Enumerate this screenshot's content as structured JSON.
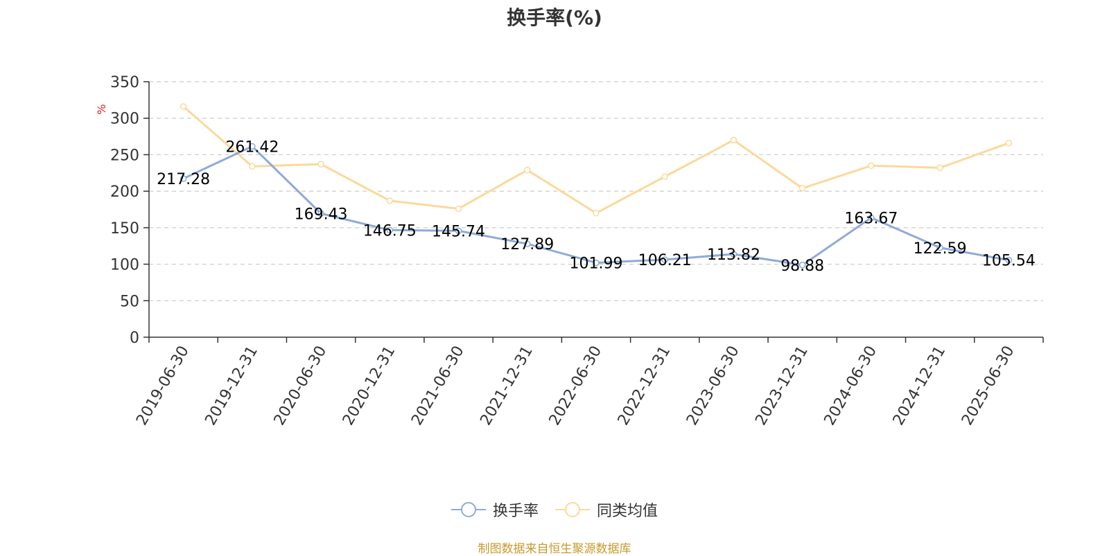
{
  "chart_data": {
    "type": "line",
    "title": "换手率(%)",
    "ylabel": "%",
    "xlabel": "",
    "ylim": [
      0,
      350
    ],
    "yticks": [
      0,
      50,
      100,
      150,
      200,
      250,
      300,
      350
    ],
    "grid": true,
    "legend_position": "bottom",
    "categories": [
      "2019-06-30",
      "2019-12-31",
      "2020-06-30",
      "2020-12-31",
      "2021-06-30",
      "2021-12-31",
      "2022-06-30",
      "2022-12-31",
      "2023-06-30",
      "2023-12-31",
      "2024-06-30",
      "2024-12-31",
      "2025-06-30"
    ],
    "series": [
      {
        "name": "换手率",
        "color": "#8eaad8",
        "show_labels": true,
        "values": [
          217.28,
          261.42,
          169.43,
          146.75,
          145.74,
          127.89,
          101.99,
          106.21,
          113.82,
          98.88,
          163.67,
          122.59,
          105.54
        ]
      },
      {
        "name": "同类均值",
        "color": "#fbd99a",
        "show_labels": false,
        "values": [
          316,
          234,
          237,
          187,
          176,
          229,
          170,
          220,
          270,
          204,
          235,
          232,
          266
        ]
      }
    ]
  },
  "source_text": "制图数据来自恒生聚源数据库",
  "colors": {
    "axis": "#333333",
    "grid": "#cccccc",
    "unit": "#e02020",
    "source": "#c69a2d"
  }
}
